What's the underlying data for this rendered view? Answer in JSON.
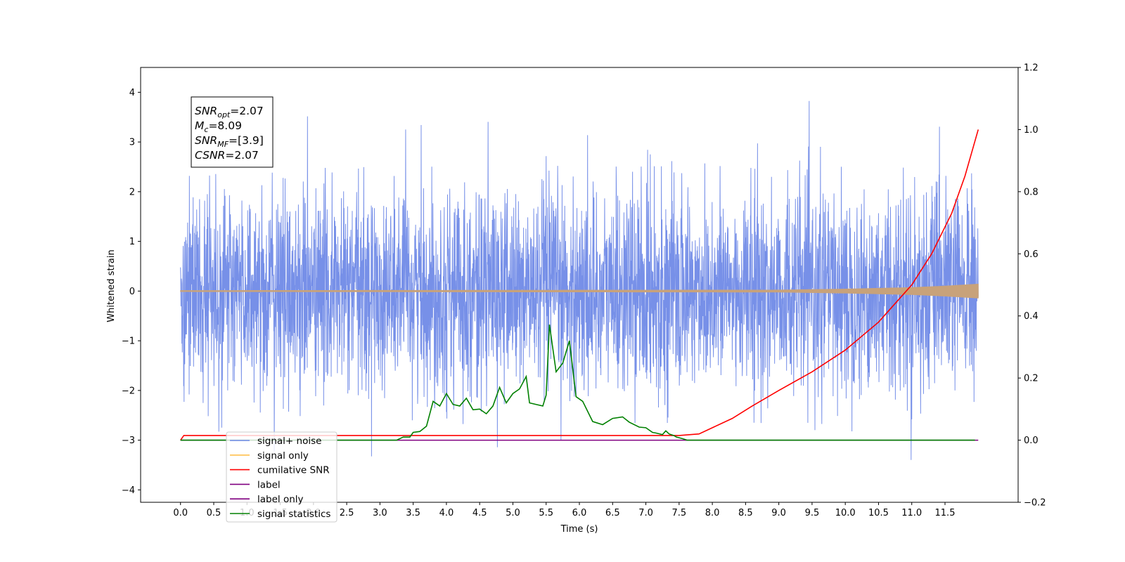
{
  "chart_data": {
    "type": "line",
    "title": "",
    "xlabel": "Time (s)",
    "ylabel": "Whitened strain",
    "xlim": [
      -0.6,
      12.6
    ],
    "ylim": [
      -4.25,
      4.5
    ],
    "y2lim": [
      -0.2,
      1.2
    ],
    "x_ticks": [
      "0.0",
      "0.5",
      "1.0",
      "1.5",
      "2.0",
      "2.5",
      "3.0",
      "3.5",
      "4.0",
      "4.5",
      "5.0",
      "5.5",
      "6.0",
      "6.5",
      "7.0",
      "7.5",
      "8.0",
      "8.5",
      "9.0",
      "9.5",
      "10.0",
      "10.5",
      "11.0",
      "11.5"
    ],
    "y_ticks": [
      "−4",
      "−3",
      "−2",
      "−1",
      "0",
      "1",
      "2",
      "3",
      "4"
    ],
    "y2_ticks": [
      "−0.2",
      "0.0",
      "0.2",
      "0.4",
      "0.6",
      "0.8",
      "1.0",
      "1.2"
    ],
    "grid": false,
    "legend_position": "lower-left",
    "legend": [
      {
        "label": "signal+ noise",
        "color": "#6b87e6"
      },
      {
        "label": "signal only",
        "color": "#ffc04d"
      },
      {
        "label": "cumilative SNR",
        "color": "#ff0000"
      },
      {
        "label": "label",
        "color": "#800080"
      },
      {
        "label": "label only",
        "color": "#800080"
      },
      {
        "label": "signal statistics",
        "color": "#008000"
      }
    ],
    "annotation": [
      {
        "main": "SNR",
        "sub": "opt",
        "rest": "=2.07"
      },
      {
        "main": "M",
        "sub": "c",
        "rest": "=8.09"
      },
      {
        "main": "SNR",
        "sub": "MF",
        "rest": "=[3.9]"
      },
      {
        "main": "CSNR",
        "sub": "",
        "rest": "=2.07"
      }
    ],
    "series": [
      {
        "name": "signal+ noise",
        "axis": "left",
        "color": "#6b87e6",
        "description": "dense whitened noise, approx. ±2 with spikes to ±4, x from 0 to 12"
      },
      {
        "name": "signal only",
        "axis": "left",
        "color": "#c8a27a",
        "x": [
          0,
          9,
          10,
          11,
          11.5,
          12
        ],
        "amplitude": [
          0.01,
          0.02,
          0.04,
          0.07,
          0.1,
          0.14
        ]
      },
      {
        "name": "cumilative SNR",
        "axis": "right",
        "color": "#ff0000",
        "x": [
          0,
          0.05,
          7.5,
          7.8,
          8.0,
          8.3,
          8.6,
          9.0,
          9.5,
          10.0,
          10.5,
          11.0,
          11.3,
          11.6,
          11.8,
          12.0
        ],
        "y": [
          0.0,
          0.015,
          0.015,
          0.02,
          0.04,
          0.07,
          0.11,
          0.16,
          0.22,
          0.29,
          0.38,
          0.5,
          0.6,
          0.73,
          0.85,
          1.0
        ]
      },
      {
        "name": "label",
        "axis": "right",
        "color": "#800080",
        "x": [
          0,
          12
        ],
        "y": [
          0.0,
          0.0
        ]
      },
      {
        "name": "signal statistics",
        "axis": "right",
        "color": "#008000",
        "x": [
          0,
          3.25,
          3.35,
          3.45,
          3.5,
          3.6,
          3.7,
          3.8,
          3.9,
          4.0,
          4.1,
          4.2,
          4.3,
          4.4,
          4.5,
          4.6,
          4.7,
          4.8,
          4.9,
          5.0,
          5.1,
          5.2,
          5.25,
          5.35,
          5.45,
          5.5,
          5.55,
          5.65,
          5.75,
          5.85,
          5.95,
          6.05,
          6.2,
          6.35,
          6.5,
          6.65,
          6.75,
          6.9,
          7.0,
          7.1,
          7.15,
          7.25,
          7.3,
          7.35,
          7.42,
          7.46,
          7.55,
          7.62,
          7.75,
          7.88,
          7.98,
          8.05,
          8.15,
          8.25,
          8.35,
          8.45,
          8.55,
          8.65,
          8.8,
          9.0,
          9.2,
          9.4,
          9.6,
          10.0,
          11.0,
          11.95
        ],
        "y": [
          0.0,
          0.0,
          0.01,
          0.01,
          0.025,
          0.028,
          0.045,
          0.125,
          0.11,
          0.15,
          0.115,
          0.11,
          0.135,
          0.098,
          0.1,
          0.085,
          0.11,
          0.17,
          0.12,
          0.15,
          0.165,
          0.205,
          0.12,
          0.115,
          0.11,
          0.145,
          0.372,
          0.22,
          0.248,
          0.32,
          0.14,
          0.125,
          0.06,
          0.05,
          0.07,
          0.075,
          0.058,
          0.042,
          0.04,
          0.025,
          0.023,
          0.018,
          0.03,
          0.02,
          0.015,
          0.01,
          0.005,
          0.0,
          0.0,
          0.0,
          0.0,
          0.0,
          0.0,
          0.0,
          0.0,
          0.0,
          0.0,
          0.0,
          0.0,
          0.0,
          0.0,
          0.0,
          0.0,
          0.0,
          0.0,
          0.0
        ]
      }
    ]
  }
}
